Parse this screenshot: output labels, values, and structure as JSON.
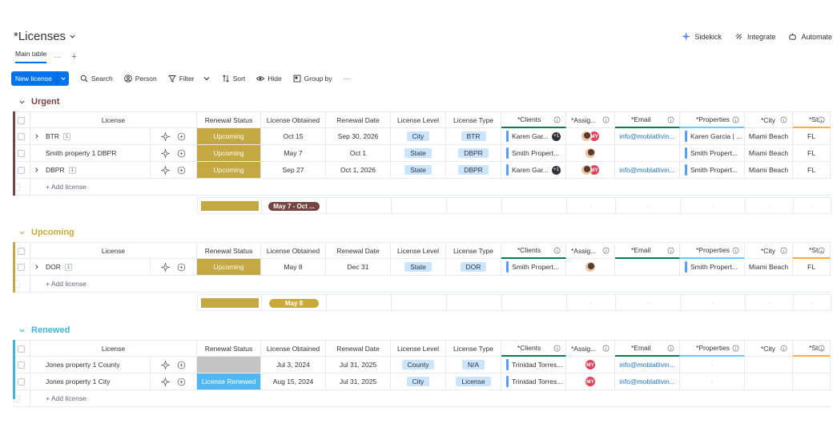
{
  "board": {
    "title": "*Licenses",
    "view_tab": "Main table",
    "view_dots": "···",
    "view_add": "+"
  },
  "top_actions": {
    "sidekick": "Sidekick",
    "integrate": "Integrate",
    "automate": "Automate / "
  },
  "toolbar": {
    "new_label": "New license",
    "search": "Search",
    "person": "Person",
    "filter": "Filter",
    "sort": "Sort",
    "hide": "Hide",
    "group_by": "Group by",
    "more": "···"
  },
  "columns": [
    "License",
    "Renewal Status",
    "License Obtained",
    "Renewal Date",
    "License Level",
    "License Type",
    "*Clients",
    "*Assig...",
    "*Email",
    "*Properties",
    "*City",
    "*St..."
  ],
  "add_row_label": "+ Add license",
  "colors": {
    "urgent": "#784343",
    "upcoming_group": "#c9aa39",
    "renewed": "#39b8e6",
    "status_upcoming": "#c4a842",
    "status_renewed": "#4fb8f2",
    "status_empty": "#c4c4c4"
  },
  "groups": {
    "urgent": {
      "title": "Urgent",
      "rows": [
        {
          "name": "BTR",
          "sub": "1",
          "status": "Upcoming",
          "obtained": "Oct 15",
          "renewal": "Sep 30, 2026",
          "level": "City",
          "type": "BTR",
          "clients": "Karen Gar...",
          "clients_more": "+1",
          "email": "info@moblatlivin...",
          "properties": "Karen Garcia | ...",
          "city": "Miami Beach",
          "state": "FL"
        },
        {
          "name": "Smith property 1 DBPR",
          "sub": "",
          "status": "Upcoming",
          "obtained": "May 7",
          "renewal": "Oct 1",
          "level": "State",
          "type": "DBPR",
          "clients": "Smith Propert...",
          "clients_more": "",
          "email": "",
          "properties": "Smith Propert...",
          "city": "Miami Beach",
          "state": "FL"
        },
        {
          "name": "DBPR",
          "sub": "1",
          "status": "Upcoming",
          "obtained": "Sep 27",
          "renewal": "Oct 1, 2026",
          "level": "State",
          "type": "DBPR",
          "clients": "Karen Gar...",
          "clients_more": "+1",
          "email": "info@moblatlivin...",
          "properties": "Smith Propert...",
          "city": "Miami Beach",
          "state": "FL"
        }
      ],
      "summary_range": "May 7 - Oct ...",
      "summary_dash": "-"
    },
    "upcoming": {
      "title": "Upcoming",
      "rows": [
        {
          "name": "DOR",
          "sub": "1",
          "status": "Upcoming",
          "obtained": "May 8",
          "renewal": "Dec 31",
          "level": "State",
          "type": "DOR",
          "clients": "Smith Propert...",
          "properties": "Smith Propert...",
          "city": "Miami Beach",
          "state": "FL"
        }
      ],
      "summary_range": "May 8",
      "summary_dash": "-"
    },
    "renewed": {
      "title": "Renewed",
      "rows": [
        {
          "name": "Jones property 1 County",
          "status": "",
          "obtained": "Jul 3, 2024",
          "renewal": "Jul 31, 2025",
          "level": "County",
          "type": "N/A",
          "clients": "Trinidad Torres...",
          "email": "info@moblatlivin...",
          "properties": "-"
        },
        {
          "name": "Jones property 1 City",
          "status": "License Renewed",
          "obtained": "Aug 15, 2024",
          "renewal": "Jul 31, 2025",
          "level": "City",
          "type": "License",
          "clients": "Trinidad Torres...",
          "email": "info@moblatlivin...",
          "properties": "-"
        }
      ]
    }
  },
  "avatar_initials": "MY"
}
